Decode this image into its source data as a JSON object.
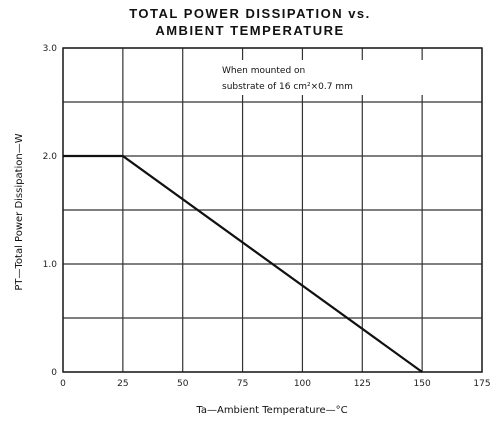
{
  "chart_data": {
    "type": "line",
    "title_line1": "TOTAL POWER DISSIPATION vs.",
    "title_line2": "AMBIENT TEMPERATURE",
    "xlabel": "Ta—Ambient Temperature—°C",
    "ylabel": "PT—Total Power Dissipation—W",
    "xlim": [
      0,
      175
    ],
    "ylim": [
      0,
      3.0
    ],
    "x_ticks": [
      "0",
      "25",
      "50",
      "75",
      "100",
      "125",
      "150",
      "175"
    ],
    "y_ticks": [
      "0",
      "1.0",
      "2.0",
      "3.0"
    ],
    "grid": true,
    "annotation_line1": "When mounted on",
    "annotation_line2": "substrate of 16 cm²×0.7 mm",
    "series": [
      {
        "x": [
          0,
          25,
          150
        ],
        "y": [
          2.0,
          2.0,
          0
        ]
      }
    ],
    "colors": {
      "line": "#111111",
      "grid": "#333333",
      "background": "#ffffff"
    }
  }
}
